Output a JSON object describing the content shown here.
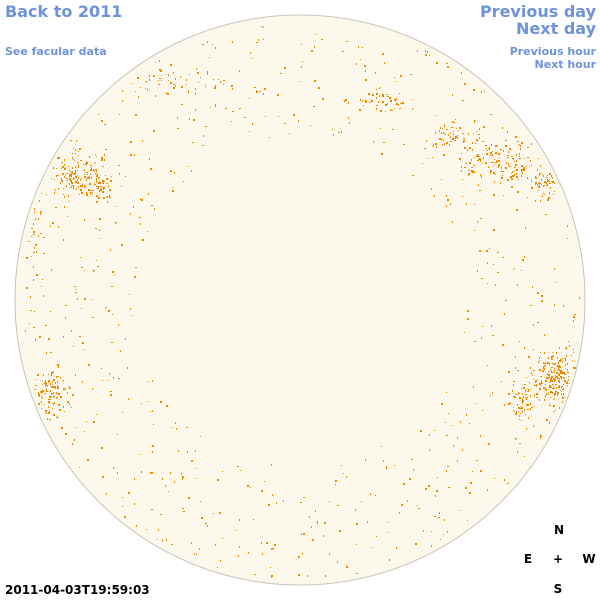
{
  "nav": {
    "back_label": "Back to 2011",
    "facular_label": "See facular data",
    "prev_day_label": "Previous day",
    "next_day_label": "Next day",
    "prev_hour_label": "Previous hour",
    "next_hour_label": "Next hour"
  },
  "timestamp": "2011-04-03T19:59:03",
  "compass": {
    "north": "N",
    "east": "E",
    "center": "+",
    "west": "W",
    "south": "S"
  },
  "colors": {
    "link": "#6f93d8",
    "disk_fill": "#fdf8ec",
    "disk_edge": "#c8c4b8",
    "feature": "#ee8a00"
  },
  "icons": {
    "compass_center": "plus-icon"
  }
}
